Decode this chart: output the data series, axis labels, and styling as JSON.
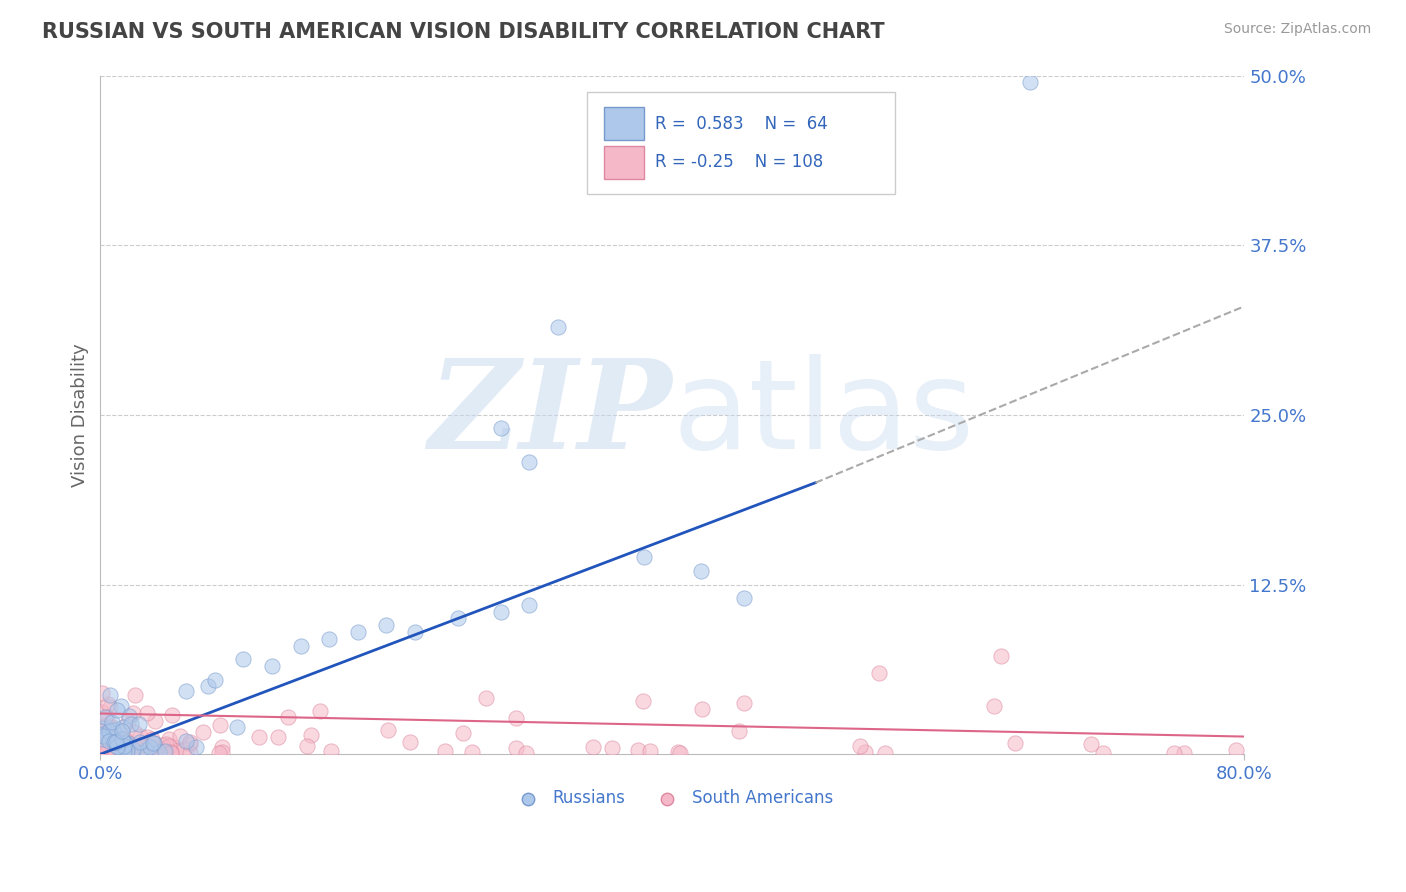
{
  "title": "RUSSIAN VS SOUTH AMERICAN VISION DISABILITY CORRELATION CHART",
  "source": "Source: ZipAtlas.com",
  "ylabel": "Vision Disability",
  "xmin": 0.0,
  "xmax": 0.8,
  "ymin": 0.0,
  "ymax": 0.5,
  "yticks": [
    0.0,
    0.125,
    0.25,
    0.375,
    0.5
  ],
  "russian_R": 0.583,
  "russian_N": 64,
  "southam_R": -0.25,
  "southam_N": 108,
  "russian_color": "#adc8ea",
  "russian_edge": "#7799cc",
  "southam_color": "#f5b8c8",
  "southam_edge": "#dd88a0",
  "trendline_russian_color": "#2255bb",
  "trendline_southam_color": "#dd6688",
  "dashed_color": "#aaaaaa",
  "watermark_color": "#c5d8ef",
  "background_color": "#ffffff",
  "grid_color": "#cccccc",
  "title_color": "#444444",
  "axis_label_color": "#666666",
  "tick_label_color": "#4477cc",
  "legend_text_color": "#3366bb"
}
